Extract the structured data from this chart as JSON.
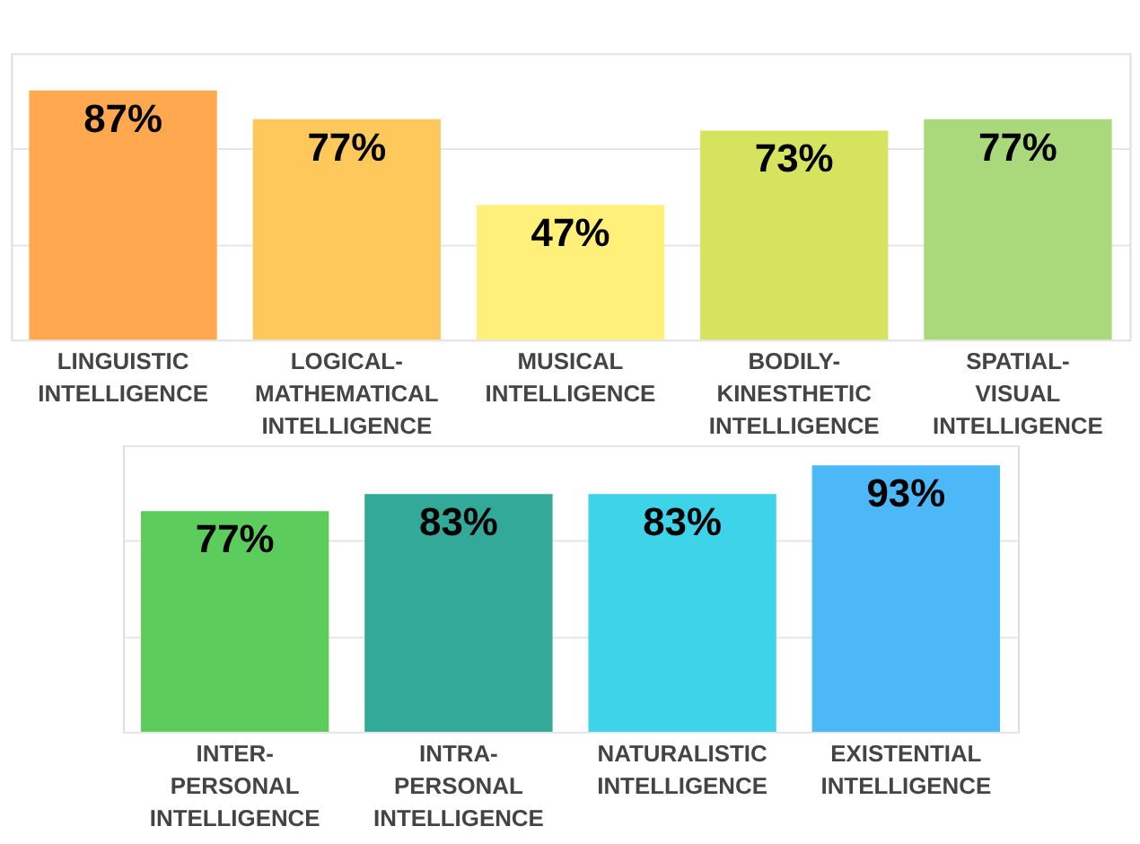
{
  "chart_data": [
    {
      "type": "bar",
      "categories": [
        "LINGUISTIC INTELLIGENCE",
        "LOGICAL-MATHEMATICAL INTELLIGENCE",
        "MUSICAL INTELLIGENCE",
        "BODILY-KINESTHETIC INTELLIGENCE",
        "SPATIAL-VISUAL INTELLIGENCE"
      ],
      "values": [
        87,
        77,
        47,
        73,
        77
      ],
      "value_labels": [
        "87%",
        "77%",
        "47%",
        "73%",
        "77%"
      ],
      "colors": [
        "#ffa84f",
        "#ffc85a",
        "#fff07a",
        "#d6e35e",
        "#a9d97a"
      ],
      "ylim": [
        0,
        100
      ],
      "yticks": [
        {
          "value": 0,
          "label": null
        },
        {
          "value": 33.33,
          "label": null
        },
        {
          "value": 66.67,
          "label": null
        },
        {
          "value": 100,
          "label": null
        }
      ],
      "grid": "y",
      "tick_labels": "x"
    },
    {
      "type": "bar",
      "categories": [
        "INTER-PERSONAL INTELLIGENCE",
        "INTRA-PERSONAL INTELLIGENCE",
        "NATURALISTIC INTELLIGENCE",
        "EXISTENTIAL INTELLIGENCE"
      ],
      "values": [
        77,
        83,
        83,
        93
      ],
      "value_labels": [
        "77%",
        "83%",
        "83%",
        "93%"
      ],
      "colors": [
        "#5ccc5c",
        "#33a99a",
        "#3dd3e8",
        "#4db8f8"
      ],
      "ylim": [
        0,
        100
      ],
      "yticks": [
        {
          "value": 0,
          "label": null
        },
        {
          "value": 33.33,
          "label": null
        },
        {
          "value": 66.67,
          "label": null
        },
        {
          "value": 100,
          "label": null
        }
      ],
      "grid": "y",
      "tick_labels": "x"
    }
  ]
}
